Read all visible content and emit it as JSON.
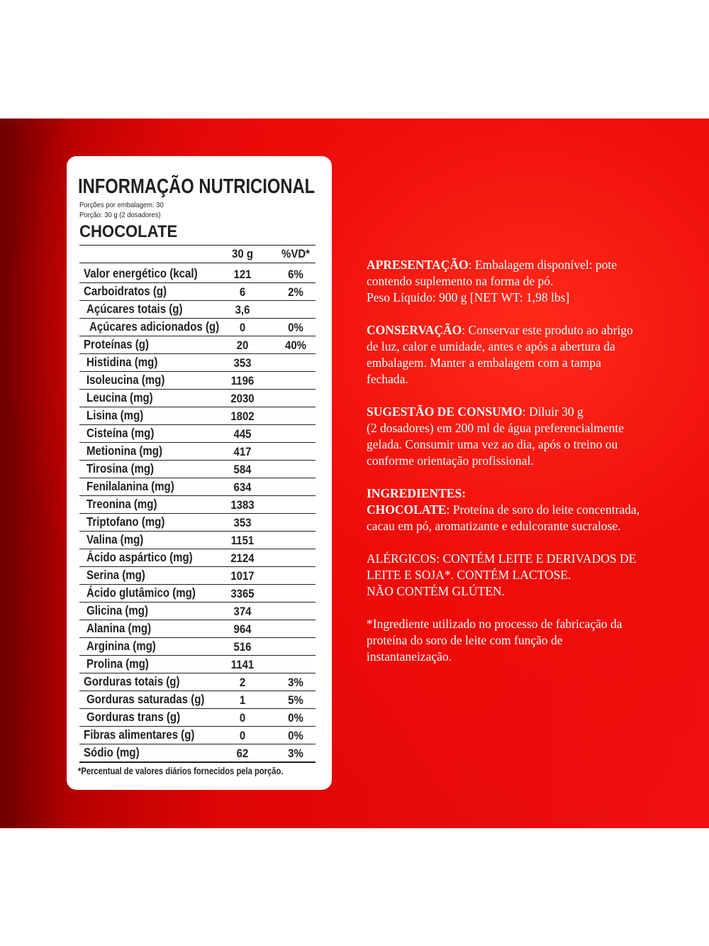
{
  "label": {
    "title": "INFORMAÇÃO NUTRICIONAL",
    "servings": "Porções por embalagem: 30",
    "portion": "Porção: 30 g (2 dosadores)",
    "flavor": "CHOCOLATE",
    "columns": [
      "30 g",
      "%VD*"
    ],
    "rows": [
      {
        "name": "Valor energético (kcal)",
        "level": 0,
        "amount": "121",
        "vd": "6%"
      },
      {
        "name": "Carboidratos (g)",
        "level": 0,
        "amount": "6",
        "vd": "2%"
      },
      {
        "name": "Açúcares totais (g)",
        "level": 1,
        "amount": "3,6"
      },
      {
        "name": "Açúcares adicionados (g)",
        "level": 2,
        "amount": "0",
        "vd": "0%"
      },
      {
        "name": "Proteínas (g)",
        "level": 0,
        "amount": "20",
        "vd": "40%"
      },
      {
        "name": "Histidina (mg)",
        "level": 1,
        "amount": "353"
      },
      {
        "name": "Isoleucina (mg)",
        "level": 1,
        "amount": "1196"
      },
      {
        "name": "Leucina (mg)",
        "level": 1,
        "amount": "2030"
      },
      {
        "name": "Lisina (mg)",
        "level": 1,
        "amount": "1802"
      },
      {
        "name": "Cisteína (mg)",
        "level": 1,
        "amount": "445"
      },
      {
        "name": "Metionina (mg)",
        "level": 1,
        "amount": "417"
      },
      {
        "name": "Tirosina (mg)",
        "level": 1,
        "amount": "584"
      },
      {
        "name": "Fenilalanina (mg)",
        "level": 1,
        "amount": "634"
      },
      {
        "name": "Treonina (mg)",
        "level": 1,
        "amount": "1383"
      },
      {
        "name": "Triptofano (mg)",
        "level": 1,
        "amount": "353"
      },
      {
        "name": "Valina (mg)",
        "level": 1,
        "amount": "1151"
      },
      {
        "name": "Ácido aspártico (mg)",
        "level": 1,
        "amount": "2124"
      },
      {
        "name": "Serina (mg)",
        "level": 1,
        "amount": "1017"
      },
      {
        "name": "Ácido glutâmico (mg)",
        "level": 1,
        "amount": "3365"
      },
      {
        "name": "Glicina (mg)",
        "level": 1,
        "amount": "374"
      },
      {
        "name": "Alanina (mg)",
        "level": 1,
        "amount": "964"
      },
      {
        "name": "Arginina (mg)",
        "level": 1,
        "amount": "516"
      },
      {
        "name": "Prolina (mg)",
        "level": 1,
        "amount": "1141"
      },
      {
        "name": "Gorduras totais (g)",
        "level": 0,
        "amount": "2",
        "vd": "3%"
      },
      {
        "name": "Gorduras saturadas (g)",
        "level": 1,
        "amount": "1",
        "vd": "5%"
      },
      {
        "name": "Gorduras trans (g)",
        "level": 1,
        "amount": "0",
        "vd": "0%"
      },
      {
        "name": "Fibras alimentares (g)",
        "level": 0,
        "amount": "0",
        "vd": "0%"
      },
      {
        "name": "Sódio (mg)",
        "level": 0,
        "amount": "62",
        "vd": "3%"
      }
    ],
    "footnote": "*Percentual de valores diários fornecidos pela porção."
  },
  "info": [
    [
      {
        "bold": "APRESENTAÇÃO",
        "text": ": Embalagem disponível: pote"
      },
      {
        "text": "contendo suplemento na forma de pó."
      },
      {
        "text": "Peso Líquido: 900 g [NET WT: 1,98 lbs]"
      }
    ],
    [
      {
        "bold": "CONSERVAÇÃO",
        "text": ": Conservar este produto ao abrigo"
      },
      {
        "text": "de luz, calor e umidade, antes e após a abertura da"
      },
      {
        "text": "embalagem. Manter a embalagem com a tampa"
      },
      {
        "text": "fechada."
      }
    ],
    [
      {
        "bold": "SUGESTÃO DE CONSUMO",
        "text": ": Diluir 30 g"
      },
      {
        "text": "(2 dosadores) em 200 ml de água preferencialmente"
      },
      {
        "text": "gelada. Consumir uma vez ao dia, após o treino ou"
      },
      {
        "text": "conforme orientação profissional."
      }
    ],
    [
      {
        "bold": "INGREDIENTES:"
      },
      {
        "bold": "CHOCOLATE",
        "text": ": Proteína de soro do leite concentrada,"
      },
      {
        "text": "cacau em pó, aromatizante e edulcorante sucralose."
      }
    ],
    [
      {
        "text": "ALÉRGICOS: CONTÉM LEITE E DERIVADOS DE"
      },
      {
        "text": "LEITE E SOJA*. CONTÉM LACTOSE."
      },
      {
        "text": "NÃO CONTÉM GLÚTEN."
      }
    ],
    [
      {
        "text": "*Ingrediente utilizado no processo de fabricação da"
      },
      {
        "text": "proteína do soro de leite com função de"
      },
      {
        "text": "instantaneização."
      }
    ]
  ]
}
